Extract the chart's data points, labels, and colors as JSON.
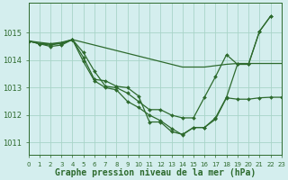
{
  "title": "Graphe pression niveau de la mer (hPa)",
  "bg_color": "#d4eeee",
  "grid_color": "#a8d4c8",
  "line_color": "#2d6a2d",
  "xlim": [
    0,
    23
  ],
  "ylim": [
    1010.55,
    1016.1
  ],
  "yticks": [
    1011,
    1012,
    1013,
    1014,
    1015
  ],
  "xticks": [
    0,
    1,
    2,
    3,
    4,
    5,
    6,
    7,
    8,
    9,
    10,
    11,
    12,
    13,
    14,
    15,
    16,
    17,
    18,
    19,
    20,
    21,
    22,
    23
  ],
  "series": [
    {
      "x": [
        0,
        1,
        2,
        3,
        4,
        5,
        6,
        7,
        8,
        9,
        10,
        11,
        12,
        13,
        14,
        15,
        16,
        17,
        18,
        19,
        20,
        21,
        22
      ],
      "y": [
        1014.7,
        1014.6,
        1014.6,
        1014.6,
        1014.75,
        1014.1,
        1013.3,
        1013.25,
        1013.05,
        1013.0,
        1012.7,
        1011.75,
        1011.75,
        1011.4,
        1011.3,
        1011.55,
        1011.55,
        1011.9,
        1012.65,
        1013.85,
        1013.85,
        1015.05,
        1015.6
      ],
      "marker": true,
      "lw": 0.9
    },
    {
      "x": [
        0,
        1,
        2,
        3,
        4,
        5,
        6,
        7,
        8,
        9,
        10,
        11,
        12,
        13,
        14,
        15,
        16,
        17,
        18,
        19,
        20,
        21,
        22,
        23
      ],
      "y": [
        1014.7,
        1014.65,
        1014.6,
        1014.65,
        1014.75,
        1014.65,
        1014.55,
        1014.45,
        1014.35,
        1014.25,
        1014.15,
        1014.05,
        1013.95,
        1013.85,
        1013.75,
        1013.75,
        1013.75,
        1013.8,
        1013.85,
        1013.88,
        1013.88,
        1013.88,
        1013.88,
        1013.88
      ],
      "marker": false,
      "lw": 0.9
    },
    {
      "x": [
        0,
        1,
        2,
        3,
        4,
        5,
        6,
        7,
        8,
        9,
        10,
        11,
        12,
        13,
        14,
        15,
        16,
        17,
        18,
        19,
        20,
        21,
        22
      ],
      "y": [
        1014.7,
        1014.6,
        1014.55,
        1014.62,
        1014.75,
        1014.28,
        1013.6,
        1013.05,
        1013.0,
        1012.8,
        1012.5,
        1012.2,
        1012.2,
        1012.0,
        1011.9,
        1011.9,
        1012.65,
        1013.4,
        1014.2,
        1013.85,
        1013.85,
        1015.05,
        1015.6
      ],
      "marker": true,
      "lw": 0.9
    },
    {
      "x": [
        0,
        1,
        2,
        3,
        4,
        5,
        6,
        7,
        8,
        9,
        10,
        11,
        12,
        13,
        14,
        15,
        16,
        17,
        18,
        19,
        20,
        21,
        22,
        23
      ],
      "y": [
        1014.7,
        1014.6,
        1014.5,
        1014.55,
        1014.75,
        1013.95,
        1013.25,
        1013.0,
        1012.92,
        1012.5,
        1012.28,
        1012.0,
        1011.8,
        1011.52,
        1011.28,
        1011.55,
        1011.55,
        1011.85,
        1012.63,
        1012.58,
        1012.58,
        1012.63,
        1012.65,
        1012.65
      ],
      "marker": true,
      "lw": 0.9
    }
  ],
  "title_fontsize": 7.0,
  "ytick_fontsize": 6.0,
  "xtick_fontsize": 5.0,
  "marker_style": "D",
  "markersize": 2.0
}
